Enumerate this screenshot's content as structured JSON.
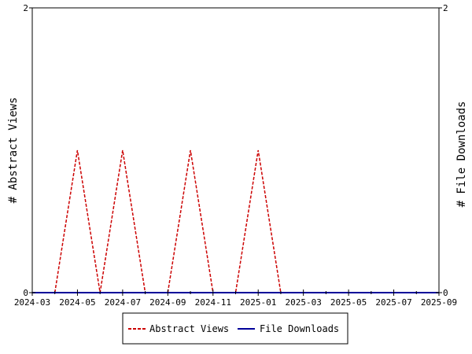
{
  "chart_data": {
    "type": "line",
    "ylabel_left": "# Abstract Views",
    "ylabel_right": "# File Downloads",
    "ylim_left": [
      0,
      2
    ],
    "ylim_right": [
      0,
      2
    ],
    "y_ticks_left": [
      "0",
      "2"
    ],
    "y_ticks_right": [
      "0",
      "2"
    ],
    "x_range": [
      "2024-03",
      "2025-09"
    ],
    "x_ticks": [
      "2024-03",
      "2024-05",
      "2024-07",
      "2024-09",
      "2024-11",
      "2025-01",
      "2025-03",
      "2025-05",
      "2025-07",
      "2025-09"
    ],
    "grid": false,
    "legend_position": "bottom-center",
    "series": [
      {
        "name": "Abstract Views",
        "axis": "left",
        "color": "#cc0000",
        "style": "dashed",
        "x": [
          "2024-04",
          "2024-05",
          "2024-06",
          "2024-07",
          "2024-08",
          "2024-09",
          "2024-10",
          "2024-11",
          "2024-12",
          "2025-01",
          "2025-02"
        ],
        "y": [
          0,
          1,
          0,
          1,
          0,
          0,
          1,
          0,
          0,
          1,
          0
        ]
      },
      {
        "name": "File Downloads",
        "axis": "right",
        "color": "#000099",
        "style": "solid",
        "x": [
          "2024-03",
          "2025-09"
        ],
        "y": [
          0,
          0
        ]
      }
    ]
  }
}
